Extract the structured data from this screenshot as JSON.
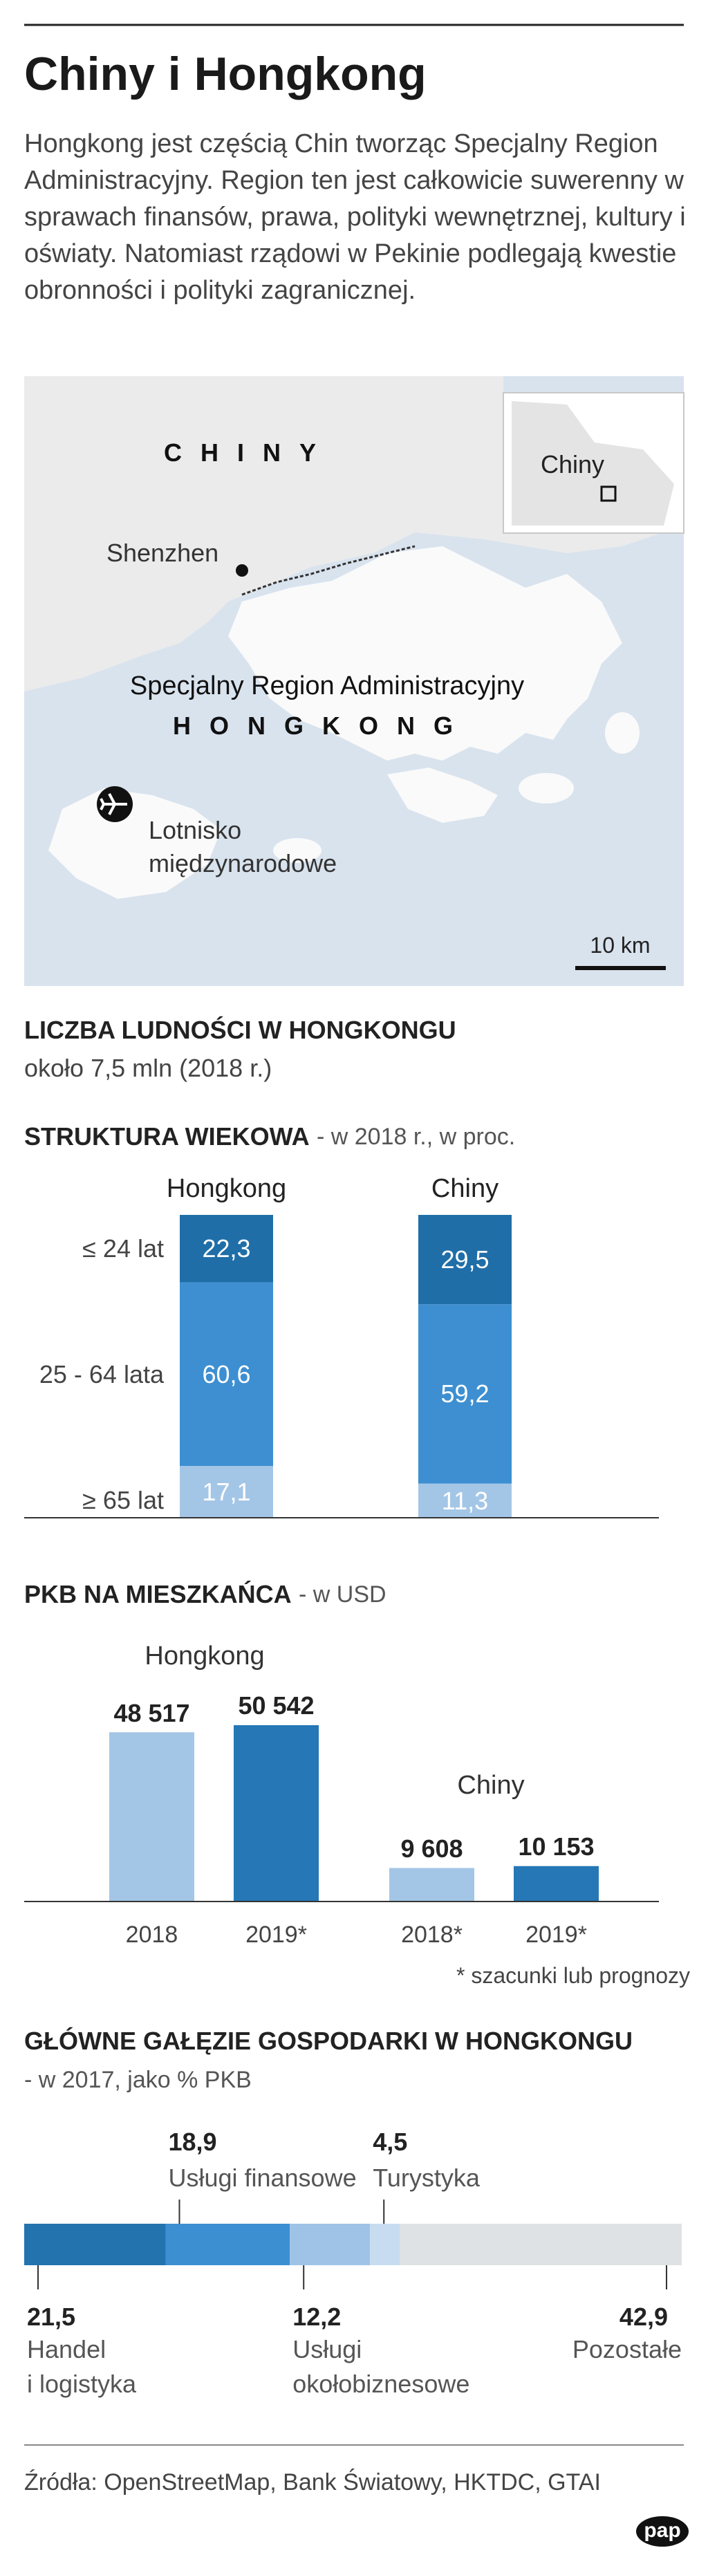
{
  "header": {
    "title": "Chiny i Hongkong",
    "intro": "Hongkong  jest częścią Chin tworząc Specjalny Region Administracyjny. Region ten jest całkowicie suwerenny w sprawach finansów, prawa, polityki wewnętrznej, kultury i oświaty. Natomiast rządowi w Pekinie podlegają kwestie obronności i polityki zagranicznej."
  },
  "map": {
    "china": "CHINY",
    "inset_label": "Chiny",
    "shenzhen": "Shenzhen",
    "region": "Specjalny Region Administracyjny",
    "hongkong": "HONGKONG",
    "airport": "Lotnisko\nmiędzynarodowe",
    "scale": "10 km"
  },
  "population": {
    "title": "LICZBA LUDNOŚCI W HONGKONGU",
    "text": "około 7,5 mln (2018 r.)"
  },
  "chart_data": [
    {
      "type": "stacked_bar",
      "title": "STRUKTURA WIEKOWA",
      "subtitle": "- w 2018 r., w proc.",
      "categories": [
        "Hongkong",
        "Chiny"
      ],
      "series": [
        {
          "name": "≥ 65 lat",
          "color": "#a4c6e6",
          "values": [
            17.1,
            11.3
          ],
          "value_labels": [
            "17,1",
            "11,3"
          ]
        },
        {
          "name": "25 - 64 lata",
          "color": "#3d8fd1",
          "values": [
            60.6,
            59.2
          ],
          "value_labels": [
            "60,6",
            "59,2"
          ]
        },
        {
          "name": "≤ 24 lat",
          "color": "#1f6ea8",
          "values": [
            22.3,
            29.5
          ],
          "value_labels": [
            "22,3",
            "29,5"
          ]
        }
      ]
    },
    {
      "type": "bar",
      "title": "PKB NA MIESZKAŃCA",
      "subtitle": "- w USD",
      "groups": [
        {
          "name": "Hongkong",
          "categories": [
            "2018",
            "2019*"
          ],
          "values": [
            48517,
            50542
          ],
          "value_labels": [
            "48 517",
            "50 542"
          ],
          "colors": [
            "#a4c6e6",
            "#2577b5"
          ]
        },
        {
          "name": "Chiny",
          "categories": [
            "2018*",
            "2019*"
          ],
          "values": [
            9608,
            10153
          ],
          "value_labels": [
            "9 608",
            "10 153"
          ],
          "colors": [
            "#a4c6e6",
            "#2577b5"
          ]
        }
      ],
      "footnote": "* szacunki lub prognozy"
    },
    {
      "type": "stacked_hbar",
      "title": "GŁÓWNE GAŁĘZIE GOSPODARKI W HONGKONGU",
      "subtitle": "- w 2017, jako % PKB",
      "series": [
        {
          "name": "Handel\ni logistyka",
          "color": "#2273ae",
          "values": [
            21.5
          ],
          "value_labels": [
            "21,5"
          ]
        },
        {
          "name": "Usługi finansowe",
          "color": "#3c8fd0",
          "values": [
            18.9
          ],
          "value_labels": [
            "18,9"
          ]
        },
        {
          "name": "Usługi\nokołobiznesowe",
          "color": "#9fc3e6",
          "values": [
            12.2
          ],
          "value_labels": [
            "12,2"
          ]
        },
        {
          "name": "Turystyka",
          "color": "#c7dcf0",
          "values": [
            4.5
          ],
          "value_labels": [
            "4,5"
          ]
        },
        {
          "name": "Pozostałe",
          "color": "#dfe2e5",
          "values": [
            42.9
          ],
          "value_labels": [
            "42,9"
          ]
        }
      ]
    }
  ],
  "footer": {
    "source": "Źródła: OpenStreetMap, Bank Światowy, HKTDC, GTAI",
    "logo": "pap"
  }
}
